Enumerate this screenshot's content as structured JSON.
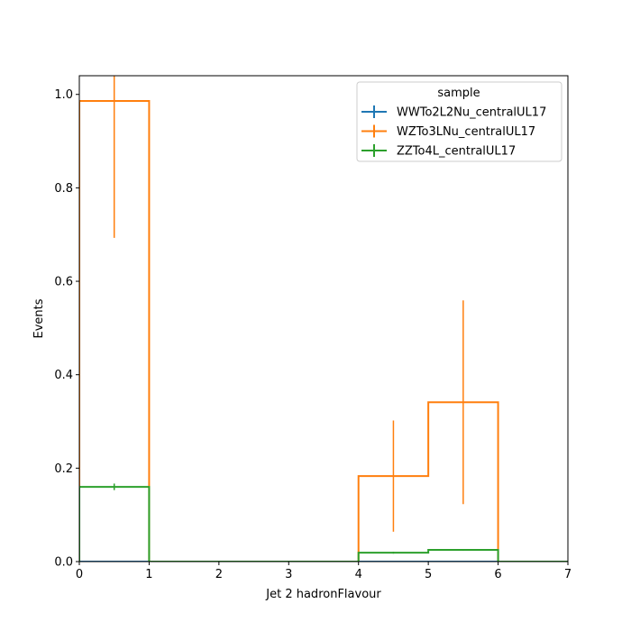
{
  "chart_data": {
    "type": "histogram",
    "xlabel": "Jet 2 hadronFlavour",
    "ylabel": "Events",
    "xlim": [
      0,
      7
    ],
    "ylim": [
      0,
      1.04
    ],
    "x_ticks": [
      "0",
      "1",
      "2",
      "3",
      "4",
      "5",
      "6",
      "7"
    ],
    "y_ticks": [
      "0.0",
      "0.2",
      "0.4",
      "0.6",
      "0.8",
      "1.0"
    ],
    "bin_edges": [
      0,
      1,
      2,
      3,
      4,
      5,
      6,
      7
    ],
    "legend": {
      "title": "sample",
      "position": "top-right"
    },
    "series": [
      {
        "name": "WWTo2L2Nu_centralUL17",
        "color": "#1f77b4",
        "values": [
          0,
          0,
          0,
          0,
          0,
          0,
          0
        ],
        "errors": [
          0,
          0,
          0,
          0,
          0,
          0,
          0
        ]
      },
      {
        "name": "WZTo3LNu_centralUL17",
        "color": "#ff7f0e",
        "values": [
          0.986,
          0,
          0,
          0,
          0.183,
          0.341,
          0
        ],
        "errors": [
          0.293,
          0,
          0,
          0,
          0.119,
          0.218,
          0
        ]
      },
      {
        "name": "ZZTo4L_centralUL17",
        "color": "#2ca02c",
        "values": [
          0.16,
          0,
          0,
          0,
          0.019,
          0.025,
          0
        ],
        "errors": [
          0.007,
          0,
          0,
          0,
          0.002,
          0.002,
          0
        ]
      }
    ]
  }
}
